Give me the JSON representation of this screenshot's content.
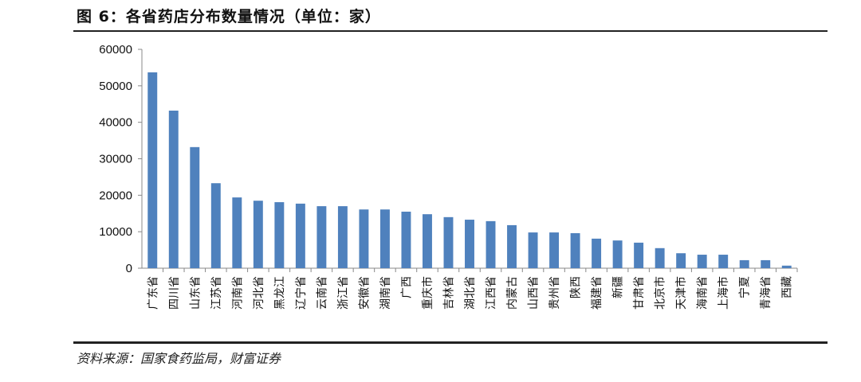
{
  "title": "图 6：各省药店分布数量情况（单位：家）",
  "source": "资料来源：国家食药监局，财富证券",
  "colors": {
    "bar": "#4f81bd"
  },
  "chart_data": {
    "type": "bar",
    "title": "各省药店分布数量情况（单位：家）",
    "xlabel": "",
    "ylabel": "",
    "ylim": [
      0,
      60000
    ],
    "yticks": [
      0,
      10000,
      20000,
      30000,
      40000,
      50000,
      60000
    ],
    "grid": false,
    "categories": [
      "广东省",
      "四川省",
      "山东省",
      "江苏省",
      "河南省",
      "河北省",
      "黑龙江",
      "辽宁省",
      "云南省",
      "浙江省",
      "安徽省",
      "湖南省",
      "广西",
      "重庆市",
      "吉林省",
      "湖北省",
      "江西省",
      "内蒙古",
      "山西省",
      "贵州省",
      "陕西",
      "福建省",
      "新疆",
      "甘肃省",
      "北京市",
      "天津市",
      "海南省",
      "上海市",
      "宁夏",
      "青海省",
      "西藏"
    ],
    "values": [
      53700,
      43200,
      33200,
      23300,
      19400,
      18500,
      18100,
      17700,
      17000,
      17000,
      16100,
      16100,
      15500,
      14800,
      14000,
      13300,
      12900,
      11800,
      9800,
      9800,
      9600,
      8100,
      7600,
      7000,
      5500,
      4100,
      3700,
      3700,
      2200,
      2200,
      700
    ]
  }
}
